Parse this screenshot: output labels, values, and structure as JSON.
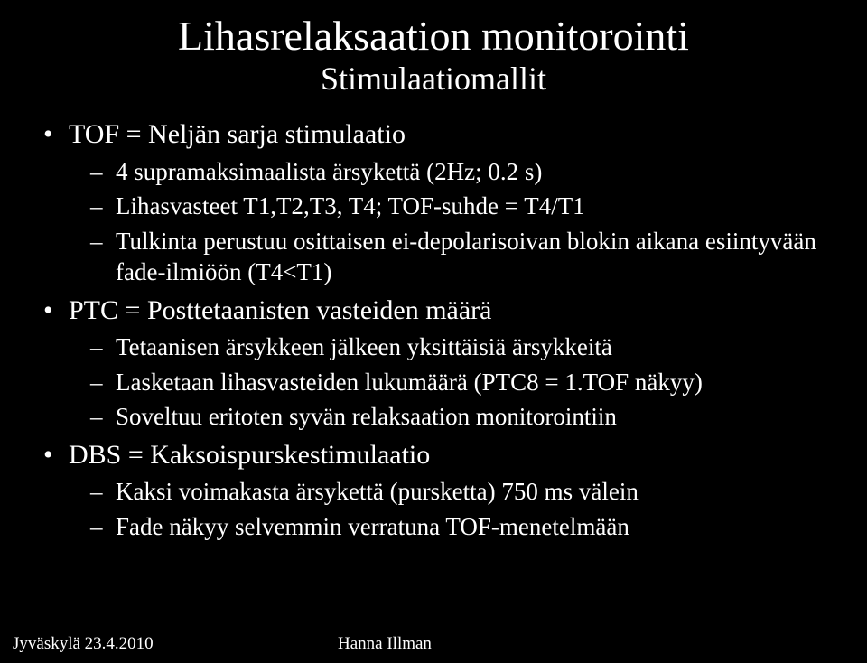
{
  "colors": {
    "background": "#000000",
    "text": "#ffffff"
  },
  "typography": {
    "title_fontsize": 46,
    "subtitle_fontsize": 36,
    "bullet_l1_fontsize": 30,
    "bullet_l2_fontsize": 27,
    "footer_fontsize": 19,
    "font_family": "Georgia, Times New Roman, serif"
  },
  "title": "Lihasrelaksaation monitorointi",
  "subtitle": "Stimulaatiomallit",
  "bullets": [
    {
      "text": "TOF = Neljän sarja stimulaatio",
      "sub": [
        {
          "text": "4 supramaksimaalista ärsykettä (2Hz; 0.2 s)"
        },
        {
          "text": "Lihasvasteet T1,T2,T3, T4; TOF-suhde = T4/T1"
        },
        {
          "text": "Tulkinta perustuu osittaisen ei-depolarisoivan blokin aikana esiintyvään fade-ilmiöön (T4<T1)"
        }
      ]
    },
    {
      "text": "PTC = Posttetaanisten vasteiden määrä",
      "sub": [
        {
          "text": "Tetaanisen ärsykkeen jälkeen yksittäisiä ärsykkeitä"
        },
        {
          "text": "Lasketaan lihasvasteiden lukumäärä  (PTC8 = 1.TOF näkyy)"
        },
        {
          "text": "Soveltuu eritoten syvän relaksaation monitorointiin"
        }
      ]
    },
    {
      "text": "DBS = Kaksoispurskestimulaatio",
      "sub": [
        {
          "text": "Kaksi voimakasta ärsykettä (pursketta) 750 ms välein"
        },
        {
          "text": "Fade näkyy selvemmin verratuna TOF-menetelmään"
        }
      ]
    }
  ],
  "footer": {
    "left": "Jyväskylä 23.4.2010",
    "center": "Hanna Illman"
  }
}
